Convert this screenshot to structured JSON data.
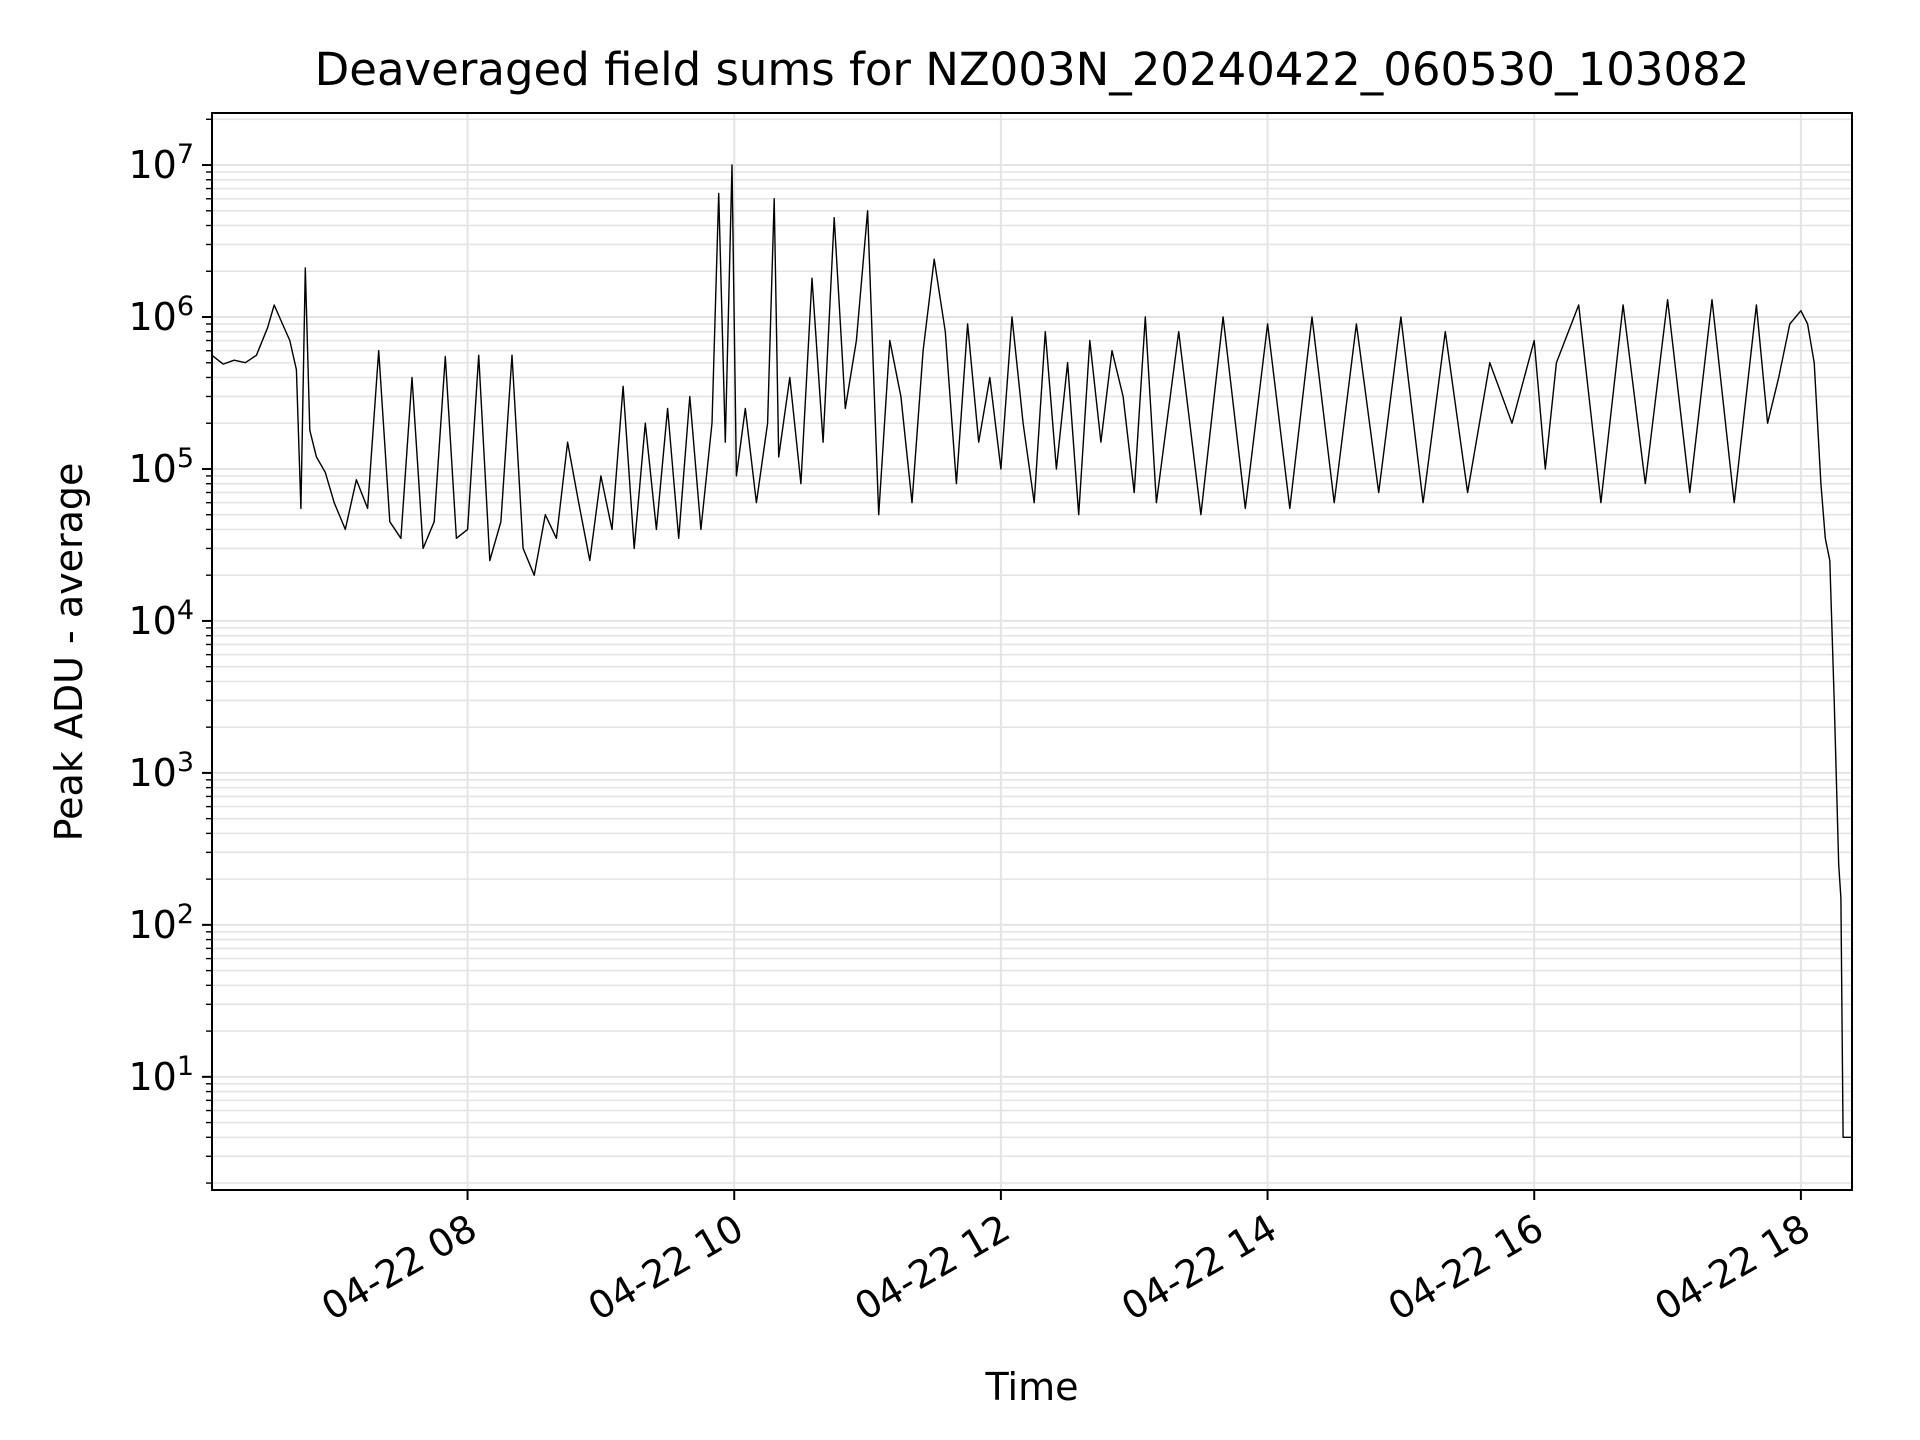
{
  "chart_data": {
    "type": "line",
    "title": "Deaveraged field sums for NZ003N_20240422_060530_103082",
    "xlabel": "Time",
    "ylabel": "Peak ADU - average",
    "yscale": "log",
    "grid": true,
    "grid_minor": true,
    "line_color": "#000000",
    "grid_color": "#e4e4e4",
    "x_range": [
      "2024-04-22 06:05",
      "2024-04-22 18:23"
    ],
    "ylim": [
      1.8,
      22000000
    ],
    "x_ticks": [
      {
        "t": "2024-04-22 08:00",
        "label": "04-22 08"
      },
      {
        "t": "2024-04-22 10:00",
        "label": "04-22 10"
      },
      {
        "t": "2024-04-22 12:00",
        "label": "04-22 12"
      },
      {
        "t": "2024-04-22 14:00",
        "label": "04-22 14"
      },
      {
        "t": "2024-04-22 16:00",
        "label": "04-22 16"
      },
      {
        "t": "2024-04-22 18:00",
        "label": "04-22 18"
      }
    ],
    "y_ticks": [
      {
        "value": 10,
        "base": "10",
        "exp": "1"
      },
      {
        "value": 100,
        "base": "10",
        "exp": "2"
      },
      {
        "value": 1000,
        "base": "10",
        "exp": "3"
      },
      {
        "value": 10000,
        "base": "10",
        "exp": "4"
      },
      {
        "value": 100000,
        "base": "10",
        "exp": "5"
      },
      {
        "value": 1000000,
        "base": "10",
        "exp": "6"
      },
      {
        "value": 10000000,
        "base": "10",
        "exp": "7"
      }
    ],
    "series": [
      {
        "points": [
          [
            "2024-04-22 06:05",
            560000
          ],
          [
            "2024-04-22 06:10",
            490000
          ],
          [
            "2024-04-22 06:15",
            520000
          ],
          [
            "2024-04-22 06:20",
            500000
          ],
          [
            "2024-04-22 06:25",
            560000
          ],
          [
            "2024-04-22 06:30",
            850000
          ],
          [
            "2024-04-22 06:33",
            1200000
          ],
          [
            "2024-04-22 06:36",
            950000
          ],
          [
            "2024-04-22 06:40",
            700000
          ],
          [
            "2024-04-22 06:43",
            450000
          ],
          [
            "2024-04-22 06:45",
            55000
          ],
          [
            "2024-04-22 06:47",
            2100000
          ],
          [
            "2024-04-22 06:49",
            180000
          ],
          [
            "2024-04-22 06:52",
            120000
          ],
          [
            "2024-04-22 06:56",
            95000
          ],
          [
            "2024-04-22 07:00",
            60000
          ],
          [
            "2024-04-22 07:05",
            40000
          ],
          [
            "2024-04-22 07:10",
            85000
          ],
          [
            "2024-04-22 07:15",
            55000
          ],
          [
            "2024-04-22 07:20",
            600000
          ],
          [
            "2024-04-22 07:25",
            45000
          ],
          [
            "2024-04-22 07:30",
            35000
          ],
          [
            "2024-04-22 07:35",
            400000
          ],
          [
            "2024-04-22 07:40",
            30000
          ],
          [
            "2024-04-22 07:45",
            45000
          ],
          [
            "2024-04-22 07:50",
            550000
          ],
          [
            "2024-04-22 07:55",
            35000
          ],
          [
            "2024-04-22 08:00",
            40000
          ],
          [
            "2024-04-22 08:05",
            560000
          ],
          [
            "2024-04-22 08:10",
            25000
          ],
          [
            "2024-04-22 08:15",
            45000
          ],
          [
            "2024-04-22 08:20",
            560000
          ],
          [
            "2024-04-22 08:25",
            30000
          ],
          [
            "2024-04-22 08:30",
            20000
          ],
          [
            "2024-04-22 08:35",
            50000
          ],
          [
            "2024-04-22 08:40",
            35000
          ],
          [
            "2024-04-22 08:45",
            150000
          ],
          [
            "2024-04-22 08:50",
            60000
          ],
          [
            "2024-04-22 08:55",
            25000
          ],
          [
            "2024-04-22 09:00",
            90000
          ],
          [
            "2024-04-22 09:05",
            40000
          ],
          [
            "2024-04-22 09:10",
            350000
          ],
          [
            "2024-04-22 09:15",
            30000
          ],
          [
            "2024-04-22 09:20",
            200000
          ],
          [
            "2024-04-22 09:25",
            40000
          ],
          [
            "2024-04-22 09:30",
            250000
          ],
          [
            "2024-04-22 09:35",
            35000
          ],
          [
            "2024-04-22 09:40",
            300000
          ],
          [
            "2024-04-22 09:45",
            40000
          ],
          [
            "2024-04-22 09:50",
            200000
          ],
          [
            "2024-04-22 09:53",
            6500000
          ],
          [
            "2024-04-22 09:56",
            150000
          ],
          [
            "2024-04-22 09:59",
            10000000
          ],
          [
            "2024-04-22 10:01",
            90000
          ],
          [
            "2024-04-22 10:05",
            250000
          ],
          [
            "2024-04-22 10:10",
            60000
          ],
          [
            "2024-04-22 10:15",
            200000
          ],
          [
            "2024-04-22 10:18",
            6000000
          ],
          [
            "2024-04-22 10:20",
            120000
          ],
          [
            "2024-04-22 10:25",
            400000
          ],
          [
            "2024-04-22 10:30",
            80000
          ],
          [
            "2024-04-22 10:35",
            1800000
          ],
          [
            "2024-04-22 10:40",
            150000
          ],
          [
            "2024-04-22 10:45",
            4500000
          ],
          [
            "2024-04-22 10:50",
            250000
          ],
          [
            "2024-04-22 10:55",
            700000
          ],
          [
            "2024-04-22 11:00",
            5000000
          ],
          [
            "2024-04-22 11:05",
            50000
          ],
          [
            "2024-04-22 11:10",
            700000
          ],
          [
            "2024-04-22 11:15",
            300000
          ],
          [
            "2024-04-22 11:20",
            60000
          ],
          [
            "2024-04-22 11:25",
            600000
          ],
          [
            "2024-04-22 11:30",
            2400000
          ],
          [
            "2024-04-22 11:35",
            800000
          ],
          [
            "2024-04-22 11:40",
            80000
          ],
          [
            "2024-04-22 11:45",
            900000
          ],
          [
            "2024-04-22 11:50",
            150000
          ],
          [
            "2024-04-22 11:55",
            400000
          ],
          [
            "2024-04-22 12:00",
            100000
          ],
          [
            "2024-04-22 12:05",
            1000000
          ],
          [
            "2024-04-22 12:10",
            200000
          ],
          [
            "2024-04-22 12:15",
            60000
          ],
          [
            "2024-04-22 12:20",
            800000
          ],
          [
            "2024-04-22 12:25",
            100000
          ],
          [
            "2024-04-22 12:30",
            500000
          ],
          [
            "2024-04-22 12:35",
            50000
          ],
          [
            "2024-04-22 12:40",
            700000
          ],
          [
            "2024-04-22 12:45",
            150000
          ],
          [
            "2024-04-22 12:50",
            600000
          ],
          [
            "2024-04-22 12:55",
            300000
          ],
          [
            "2024-04-22 13:00",
            70000
          ],
          [
            "2024-04-22 13:05",
            1000000
          ],
          [
            "2024-04-22 13:10",
            60000
          ],
          [
            "2024-04-22 13:20",
            800000
          ],
          [
            "2024-04-22 13:30",
            50000
          ],
          [
            "2024-04-22 13:40",
            1000000
          ],
          [
            "2024-04-22 13:50",
            55000
          ],
          [
            "2024-04-22 14:00",
            900000
          ],
          [
            "2024-04-22 14:10",
            55000
          ],
          [
            "2024-04-22 14:20",
            1000000
          ],
          [
            "2024-04-22 14:30",
            60000
          ],
          [
            "2024-04-22 14:40",
            900000
          ],
          [
            "2024-04-22 14:50",
            70000
          ],
          [
            "2024-04-22 15:00",
            1000000
          ],
          [
            "2024-04-22 15:10",
            60000
          ],
          [
            "2024-04-22 15:20",
            800000
          ],
          [
            "2024-04-22 15:30",
            70000
          ],
          [
            "2024-04-22 15:40",
            500000
          ],
          [
            "2024-04-22 15:50",
            200000
          ],
          [
            "2024-04-22 16:00",
            700000
          ],
          [
            "2024-04-22 16:05",
            100000
          ],
          [
            "2024-04-22 16:10",
            500000
          ],
          [
            "2024-04-22 16:20",
            1200000
          ],
          [
            "2024-04-22 16:30",
            60000
          ],
          [
            "2024-04-22 16:40",
            1200000
          ],
          [
            "2024-04-22 16:50",
            80000
          ],
          [
            "2024-04-22 17:00",
            1300000
          ],
          [
            "2024-04-22 17:10",
            70000
          ],
          [
            "2024-04-22 17:20",
            1300000
          ],
          [
            "2024-04-22 17:30",
            60000
          ],
          [
            "2024-04-22 17:40",
            1200000
          ],
          [
            "2024-04-22 17:45",
            200000
          ],
          [
            "2024-04-22 17:50",
            400000
          ],
          [
            "2024-04-22 17:55",
            900000
          ],
          [
            "2024-04-22 18:00",
            1100000
          ],
          [
            "2024-04-22 18:03",
            900000
          ],
          [
            "2024-04-22 18:06",
            500000
          ],
          [
            "2024-04-22 18:09",
            80000
          ],
          [
            "2024-04-22 18:11",
            35000
          ],
          [
            "2024-04-22 18:13",
            25000
          ],
          [
            "2024-04-22 18:15",
            3000
          ],
          [
            "2024-04-22 18:17",
            250
          ],
          [
            "2024-04-22 18:18",
            150
          ],
          [
            "2024-04-22 18:19",
            4
          ],
          [
            "2024-04-22 18:23",
            4
          ]
        ]
      }
    ]
  }
}
